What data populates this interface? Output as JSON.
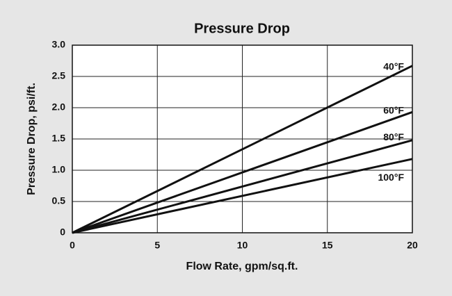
{
  "chart_data": {
    "type": "line",
    "title": "Pressure Drop",
    "x_label": "Flow Rate, gpm/sq.ft.",
    "y_label": "Pressure Drop, psi/ft.",
    "x": [
      0,
      20
    ],
    "series": [
      {
        "name": "40°F",
        "color": "#111111",
        "values": [
          0,
          2.67
        ]
      },
      {
        "name": "60°F",
        "color": "#111111",
        "values": [
          0,
          1.93
        ]
      },
      {
        "name": "80°F",
        "color": "#111111",
        "values": [
          0,
          1.48
        ]
      },
      {
        "name": "100°F",
        "color": "#111111",
        "values": [
          0,
          1.18
        ]
      }
    ],
    "xlim": [
      0,
      20
    ],
    "xticks": [
      0,
      5,
      10,
      15,
      20
    ],
    "ylim": [
      0,
      3
    ],
    "yticks": [
      0,
      0.5,
      {
        "value": 1,
        "label": "1.0"
      },
      1.5,
      {
        "value": 2,
        "label": "2.0"
      },
      2.5,
      {
        "value": 3,
        "label": "3.0"
      }
    ],
    "grid": true
  }
}
